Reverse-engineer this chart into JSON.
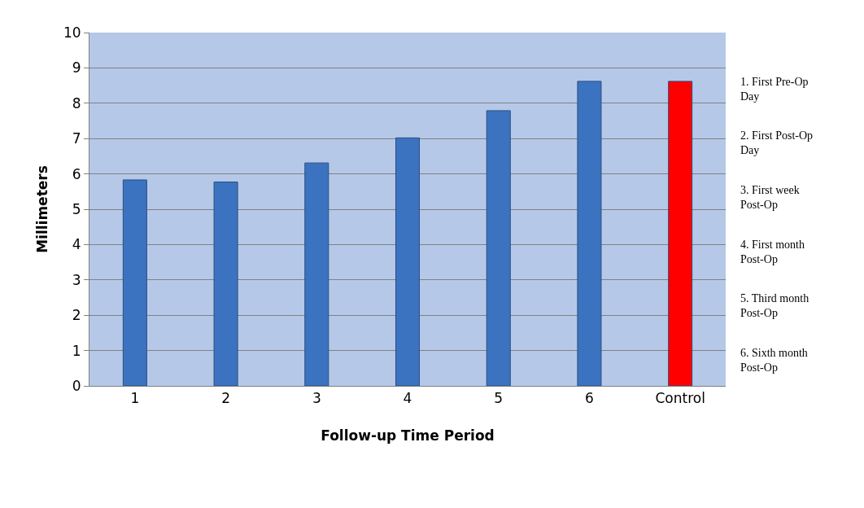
{
  "chart_data": {
    "type": "bar",
    "xlabel": "Follow-up Time Period",
    "ylabel": "Millimeters",
    "categories": [
      "1",
      "2",
      "3",
      "4",
      "5",
      "6",
      "Control"
    ],
    "values": [
      5.83,
      5.77,
      6.31,
      7.02,
      7.79,
      8.62,
      8.62
    ],
    "colors": [
      "#3b73c0",
      "#3b73c0",
      "#3b73c0",
      "#3b73c0",
      "#3b73c0",
      "#3b73c0",
      "#ff0000"
    ],
    "ylim": [
      0,
      10
    ],
    "yticks": [
      0,
      1,
      2,
      3,
      4,
      5,
      6,
      7,
      8,
      9,
      10
    ],
    "grid": "y",
    "annotations": [
      "1. First Pre-Op\nDay",
      "2. First Post-Op\nDay",
      "3. First week\nPost-Op",
      "4. First month\nPost-Op",
      "5. Third month\nPost-Op",
      "6. Sixth month\nPost-Op"
    ]
  }
}
